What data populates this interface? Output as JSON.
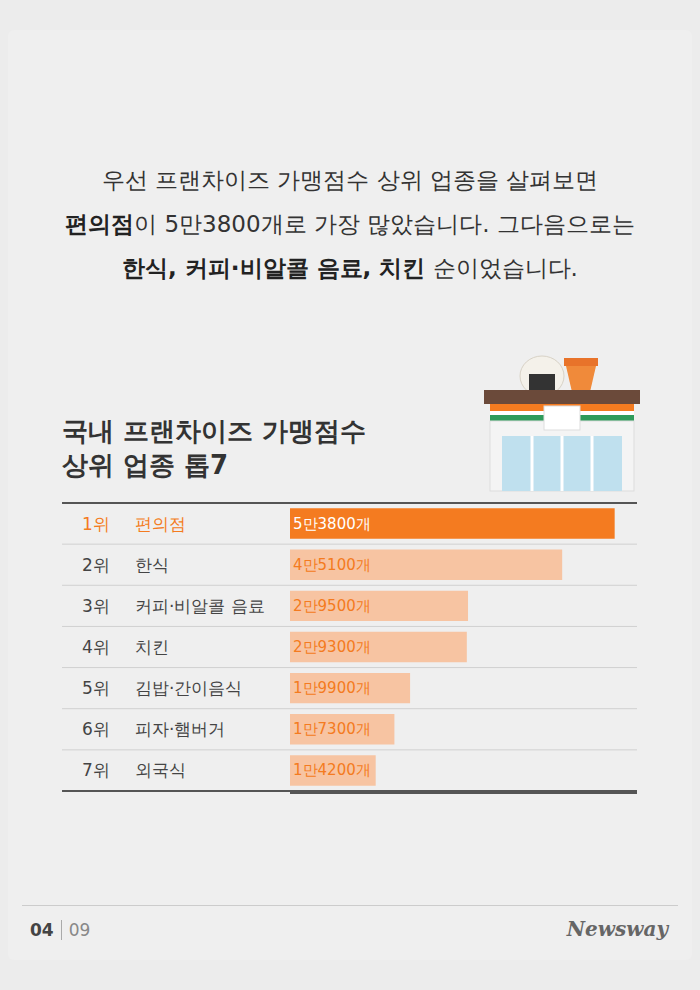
{
  "chart_data": {
    "type": "bar",
    "orientation": "horizontal",
    "title": "국내 프랜차이즈 가맹점수 상위 업종 톱7",
    "ranks": [
      "1위",
      "2위",
      "3위",
      "4위",
      "5위",
      "6위",
      "7위"
    ],
    "categories": [
      "편의점",
      "한식",
      "커피·비알콜 음료",
      "치킨",
      "김밥·간이음식",
      "피자·햄버거",
      "외국식"
    ],
    "values": [
      53800,
      45100,
      29500,
      29300,
      19900,
      17300,
      14200
    ],
    "value_labels": [
      "5만3800개",
      "4만5100개",
      "2만9500개",
      "2만9300개",
      "1만9900개",
      "1만7300개",
      "1만4200개"
    ],
    "colors": [
      "#f47b20",
      "#f7c4a2",
      "#f7c4a2",
      "#f7c4a2",
      "#f7c4a2",
      "#f7c4a2",
      "#f7c4a2"
    ],
    "data_labels": true,
    "xlim": [
      0,
      57500
    ],
    "xticks": [],
    "grid": false
  },
  "header": {
    "lines": [
      [
        {
          "text": "우선 프랜차이즈 가맹점수 상위 업종을 살펴보면",
          "bold": false
        }
      ],
      [
        {
          "text": "편의점",
          "bold": true
        },
        {
          "text": "이 5만3800개로 가장 많았습니다. 그다음으로는",
          "bold": false
        }
      ],
      [
        {
          "text": "한식, 커피·비알콜 음료, 치킨",
          "bold": true
        },
        {
          "text": " 순이었습니다.",
          "bold": false
        }
      ]
    ]
  },
  "footer": {
    "page": "04",
    "total": "09",
    "brand": "Newsway"
  }
}
